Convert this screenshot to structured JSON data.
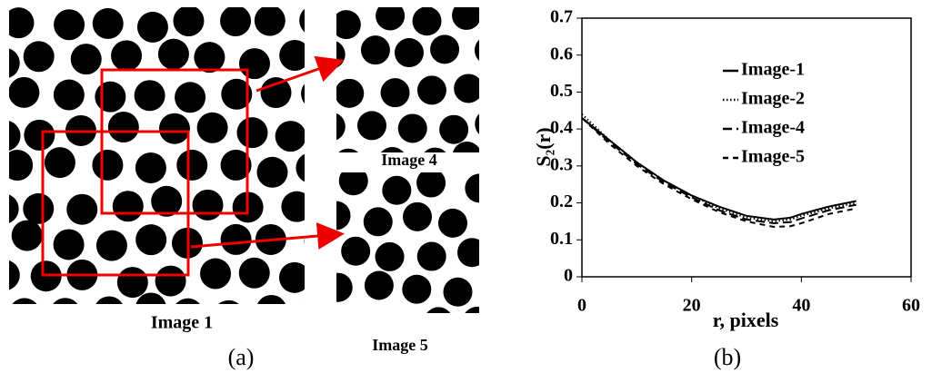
{
  "panel_a": {
    "label": "(a)",
    "image_captions": [
      "Image 1",
      "Image 4",
      "Image 5"
    ]
  },
  "chart_data": {
    "type": "line",
    "panel_label": "(b)",
    "x_label": "r, pixels",
    "y_label": "S₂(r)",
    "xlim": [
      0,
      60
    ],
    "xticks": [
      0,
      20,
      40,
      60
    ],
    "ylim": [
      0,
      0.7
    ],
    "yticks": [
      0,
      0.1,
      0.2,
      0.3,
      0.4,
      0.5,
      0.6,
      0.7
    ],
    "x": [
      0,
      5,
      10,
      15,
      20,
      25,
      30,
      35,
      38,
      40,
      45,
      50
    ],
    "series": [
      {
        "name": "Image-1",
        "color": "#000000",
        "dash": "solid",
        "values": [
          0.43,
          0.37,
          0.31,
          0.26,
          0.22,
          0.19,
          0.165,
          0.155,
          0.16,
          0.17,
          0.19,
          0.205
        ]
      },
      {
        "name": "Image-2",
        "color": "#000000",
        "dash": "dotted",
        "values": [
          0.44,
          0.37,
          0.31,
          0.26,
          0.22,
          0.185,
          0.16,
          0.15,
          0.155,
          0.165,
          0.185,
          0.2
        ]
      },
      {
        "name": "Image-4",
        "color": "#000000",
        "dash": "long-dash",
        "values": [
          0.43,
          0.365,
          0.305,
          0.255,
          0.215,
          0.18,
          0.155,
          0.145,
          0.148,
          0.158,
          0.18,
          0.195
        ]
      },
      {
        "name": "Image-5",
        "color": "#000000",
        "dash": "dashed",
        "values": [
          0.43,
          0.36,
          0.3,
          0.25,
          0.21,
          0.175,
          0.15,
          0.135,
          0.137,
          0.145,
          0.17,
          0.185
        ]
      }
    ]
  }
}
